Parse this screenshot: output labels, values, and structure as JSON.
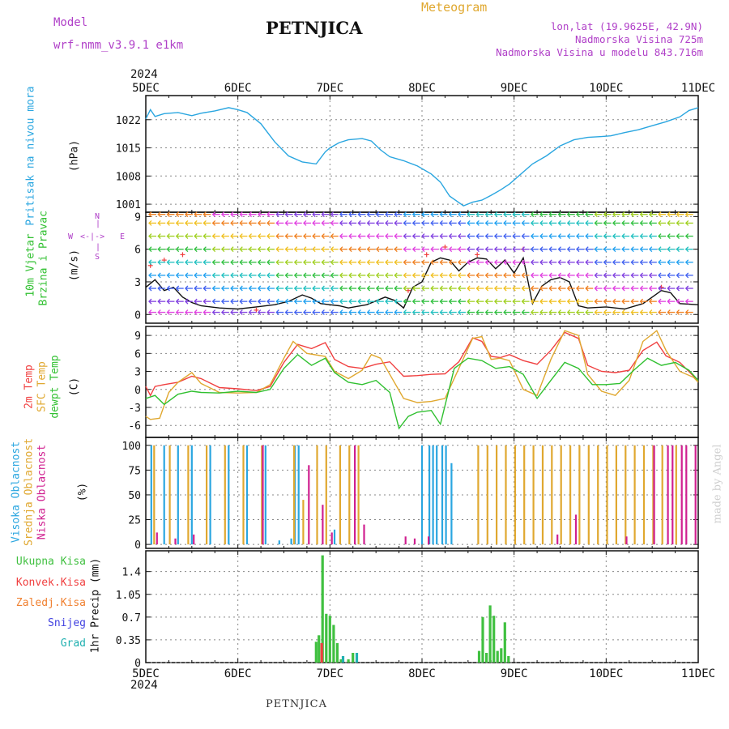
{
  "header": {
    "title": "PETNJICA",
    "subtitle": "Meteogram",
    "model_label": "Model",
    "model_name": "wrf-nmm_v3.9.1 e1km",
    "lonlat": "lon,lat (19.9625E, 42.9N)",
    "elevation": "Nadmorska Visina 725m",
    "elevation_model": "Nadmorska Visina u modelu 843.716m"
  },
  "footer": {
    "station": "PETNJICA",
    "credit": "made by Angel"
  },
  "time_axis": {
    "year": "2024",
    "labels": [
      "5DEC",
      "6DEC",
      "7DEC",
      "8DEC",
      "9DEC",
      "10DEC",
      "11DEC"
    ]
  },
  "colors": {
    "pressure": "#2aa6e0",
    "temp2m": "#f04040",
    "sfc": "#e0a830",
    "dewpt": "#30c030",
    "high_cloud": "#2aa6e0",
    "mid_cloud": "#e0a830",
    "low_cloud": "#d02090",
    "total_precip": "#40c040",
    "conv": "#f04040",
    "frozen": "#f08030",
    "snow": "#4040e0",
    "graupel": "#20b0b0",
    "wind_label": "#30c030",
    "purple": "#b040c8"
  },
  "panels": {
    "pressure": {
      "label": "Pritisak na nivou mora",
      "unit": "(hPa)"
    },
    "wind": {
      "label1": "10m Vjetar",
      "label2": "Brzina i Pravac",
      "unit": "(m/s)",
      "compass_n": "N",
      "compass_s": "S",
      "compass_w": "W",
      "compass_e": "E"
    },
    "temp": {
      "label1": "2m Temp",
      "label2": "SFC Temp",
      "label3": "dewpt Temp",
      "unit": "(C)"
    },
    "cloud": {
      "label1": "Visoka Oblacnost",
      "label2": "Srednja Oblacnost",
      "label3": "Niska Oblacnost",
      "unit": "(%)"
    },
    "precip": {
      "legend": [
        "Ukupna Kisa",
        "Konvek.Kisa",
        "Zaledj.Kisa",
        "Snijeg",
        "Grad"
      ],
      "ylabel": "1hr Precip (mm)"
    }
  },
  "chart_data": [
    {
      "type": "line",
      "name": "pressure",
      "ylabel": "Pritisak na nivou mora (hPa)",
      "yticks": [
        1001,
        1008,
        1015,
        1022
      ],
      "ylim": [
        999,
        1028
      ],
      "xlim": [
        0,
        6
      ],
      "grid": true,
      "series": [
        {
          "name": "Pritisak na nivou mora",
          "color": "#2aa6e0",
          "x": [
            0,
            0.05,
            0.1,
            0.2,
            0.35,
            0.5,
            0.6,
            0.75,
            0.9,
            1.0,
            1.1,
            1.25,
            1.4,
            1.55,
            1.7,
            1.85,
            1.95,
            2.0,
            2.1,
            2.2,
            2.35,
            2.45,
            2.55,
            2.65,
            2.8,
            2.95,
            3.1,
            3.2,
            3.3,
            3.45,
            3.55,
            3.65,
            3.75,
            3.85,
            3.95,
            4.05,
            4.2,
            4.35,
            4.5,
            4.65,
            4.8,
            4.95,
            5.05,
            5.2,
            5.35,
            5.5,
            5.65,
            5.8,
            5.9,
            6.0
          ],
          "values": [
            1022.2,
            1024.5,
            1022.8,
            1023.5,
            1023.8,
            1023.0,
            1023.6,
            1024.2,
            1025.0,
            1024.5,
            1023.8,
            1021.0,
            1016.5,
            1013.0,
            1011.5,
            1011.0,
            1014.0,
            1015.0,
            1016.3,
            1017.0,
            1017.3,
            1016.7,
            1014.5,
            1012.8,
            1011.8,
            1010.5,
            1008.5,
            1006.5,
            1003.0,
            1000.6,
            1001.5,
            1002.0,
            1003.2,
            1004.5,
            1006.0,
            1008.0,
            1011.0,
            1013.0,
            1015.5,
            1017.0,
            1017.6,
            1017.8,
            1018.0,
            1018.8,
            1019.5,
            1020.5,
            1021.5,
            1022.7,
            1024.3,
            1025.0
          ]
        }
      ]
    },
    {
      "type": "line",
      "name": "wind",
      "ylabel": "10m Vjetar Brzina i Pravac (m/s)",
      "yticks": [
        0,
        3,
        6,
        9
      ],
      "ylim": [
        -0.8,
        9.4
      ],
      "xlim": [
        0,
        6
      ],
      "grid": true,
      "series": [
        {
          "name": "Brzina",
          "color": "#111111",
          "x": [
            0,
            0.1,
            0.2,
            0.3,
            0.4,
            0.5,
            0.6,
            0.8,
            1.0,
            1.2,
            1.4,
            1.55,
            1.7,
            1.8,
            1.9,
            2.0,
            2.1,
            2.2,
            2.4,
            2.6,
            2.7,
            2.8,
            2.9,
            3.0,
            3.1,
            3.2,
            3.3,
            3.4,
            3.5,
            3.6,
            3.7,
            3.8,
            3.9,
            4.0,
            4.1,
            4.2,
            4.3,
            4.4,
            4.5,
            4.6,
            4.7,
            4.8,
            5.0,
            5.2,
            5.4,
            5.5,
            5.6,
            5.7,
            5.8,
            6.0
          ],
          "values": [
            2.5,
            3.2,
            2.2,
            2.5,
            1.6,
            1.1,
            0.8,
            0.6,
            0.5,
            0.7,
            0.9,
            1.2,
            1.8,
            1.5,
            1.0,
            0.9,
            0.8,
            0.6,
            0.9,
            1.6,
            1.3,
            0.6,
            2.5,
            3.0,
            4.8,
            5.2,
            5.0,
            4.0,
            4.8,
            5.2,
            5.1,
            4.2,
            5.0,
            3.8,
            5.2,
            1.0,
            2.6,
            3.2,
            3.4,
            3.0,
            0.8,
            0.6,
            0.7,
            0.5,
            1.0,
            1.6,
            2.2,
            2.0,
            1.0,
            0.9
          ]
        },
        {
          "name": "Udari",
          "color": "#f04040",
          "x": [
            0.05,
            0.2,
            0.4,
            1.2,
            2.85,
            3.05,
            3.25,
            3.6,
            4.1,
            5.6
          ],
          "values": [
            4.5,
            5.0,
            5.5,
            0.4,
            2.2,
            5.5,
            6.2,
            5.5,
            6.0,
            2.5
          ]
        }
      ]
    },
    {
      "type": "line",
      "name": "temperature",
      "ylabel": "2m Temp / SFC Temp / dewpt Temp (C)",
      "yticks": [
        -6,
        -3,
        0,
        3,
        6,
        9
      ],
      "ylim": [
        -8,
        10.5
      ],
      "xlim": [
        0,
        6
      ],
      "grid": true,
      "series": [
        {
          "name": "2m Temp",
          "color": "#f04040",
          "x": [
            0,
            0.05,
            0.1,
            0.2,
            0.35,
            0.5,
            0.6,
            0.8,
            1.0,
            1.2,
            1.35,
            1.5,
            1.65,
            1.8,
            1.95,
            2.05,
            2.2,
            2.35,
            2.5,
            2.65,
            2.8,
            2.95,
            3.1,
            3.25,
            3.4,
            3.55,
            3.65,
            3.75,
            3.85,
            3.95,
            4.1,
            4.25,
            4.4,
            4.55,
            4.7,
            4.8,
            4.95,
            5.1,
            5.25,
            5.4,
            5.55,
            5.65,
            5.8,
            5.95,
            6.0
          ],
          "values": [
            0.5,
            -1.0,
            0.5,
            0.8,
            1.2,
            2.2,
            1.8,
            0.3,
            0.1,
            -0.2,
            0.5,
            4.5,
            7.5,
            6.8,
            7.8,
            5.0,
            3.8,
            3.5,
            4.2,
            4.6,
            2.2,
            2.3,
            2.5,
            2.6,
            4.6,
            8.6,
            8.0,
            5.5,
            5.3,
            5.8,
            4.8,
            4.2,
            6.5,
            9.5,
            8.5,
            4.0,
            3.0,
            2.8,
            3.2,
            6.5,
            7.9,
            5.6,
            4.5,
            2.2,
            1.5
          ]
        },
        {
          "name": "SFC Temp",
          "color": "#e0a830",
          "x": [
            0,
            0.05,
            0.15,
            0.25,
            0.35,
            0.5,
            0.6,
            0.8,
            1.0,
            1.2,
            1.35,
            1.5,
            1.6,
            1.75,
            1.95,
            2.05,
            2.2,
            2.35,
            2.45,
            2.55,
            2.65,
            2.8,
            2.95,
            3.1,
            3.25,
            3.4,
            3.55,
            3.65,
            3.75,
            3.85,
            3.95,
            4.1,
            4.25,
            4.4,
            4.55,
            4.7,
            4.8,
            4.95,
            5.1,
            5.25,
            5.4,
            5.55,
            5.65,
            5.8,
            5.95,
            6.0
          ],
          "values": [
            -4.5,
            -5.0,
            -4.8,
            -0.5,
            1.2,
            2.8,
            1.0,
            -0.5,
            -0.6,
            -0.5,
            0.8,
            5.2,
            8.0,
            6.0,
            5.5,
            3.0,
            1.8,
            3.2,
            5.8,
            5.2,
            2.5,
            -1.5,
            -2.2,
            -2.0,
            -1.5,
            3.5,
            8.5,
            8.8,
            5.0,
            5.2,
            4.8,
            0.0,
            -1.0,
            5.0,
            9.8,
            9.0,
            2.5,
            -0.3,
            -1.0,
            1.5,
            8.0,
            9.8,
            6.5,
            3.0,
            2.0,
            1.2
          ]
        },
        {
          "name": "dewpt Temp",
          "color": "#30c030",
          "x": [
            0,
            0.1,
            0.2,
            0.35,
            0.5,
            0.6,
            0.8,
            1.0,
            1.2,
            1.35,
            1.5,
            1.65,
            1.8,
            1.95,
            2.05,
            2.2,
            2.35,
            2.5,
            2.65,
            2.75,
            2.85,
            2.95,
            3.1,
            3.2,
            3.35,
            3.5,
            3.65,
            3.8,
            3.95,
            4.1,
            4.25,
            4.4,
            4.55,
            4.7,
            4.85,
            5.0,
            5.15,
            5.3,
            5.45,
            5.6,
            5.75,
            5.9,
            6.0
          ],
          "values": [
            -1.5,
            -1.0,
            -2.5,
            -0.8,
            -0.3,
            -0.5,
            -0.6,
            -0.3,
            -0.5,
            0.0,
            3.5,
            5.8,
            4.0,
            5.2,
            2.8,
            1.2,
            0.8,
            1.5,
            -0.5,
            -6.5,
            -4.5,
            -3.8,
            -3.5,
            -5.8,
            3.5,
            5.2,
            4.8,
            3.5,
            3.8,
            2.5,
            -1.5,
            1.5,
            4.5,
            3.5,
            0.8,
            0.8,
            1.0,
            3.2,
            5.2,
            4.0,
            4.5,
            3.2,
            1.5
          ]
        }
      ]
    },
    {
      "type": "bar",
      "name": "cloud_cover",
      "ylabel": "Visoka / Srednja / Niska Oblacnost (%)",
      "yticks": [
        0,
        25,
        50,
        75,
        100
      ],
      "ylim": [
        -4,
        108
      ],
      "xlim": [
        0,
        6
      ],
      "grid": true,
      "series": [
        {
          "name": "Visoka Oblacnost",
          "color": "#2aa6e0",
          "x": [
            0.06,
            0.2,
            0.35,
            0.5,
            0.7,
            0.9,
            1.1,
            1.3,
            1.45,
            1.58,
            1.62,
            1.66,
            2.05,
            3.0,
            3.08,
            3.12,
            3.16,
            3.22,
            3.26,
            3.32
          ],
          "values": [
            100,
            100,
            100,
            100,
            100,
            100,
            100,
            100,
            4,
            6,
            100,
            100,
            15,
            100,
            100,
            100,
            100,
            100,
            100,
            82
          ]
        },
        {
          "name": "Srednja Oblacnost",
          "color": "#e0a830",
          "x": [
            0.08,
            0.25,
            0.45,
            0.65,
            0.85,
            1.05,
            1.25,
            1.6,
            1.7,
            1.85,
            1.95,
            2.1,
            2.2,
            2.3,
            3.6,
            3.7,
            3.8,
            3.9,
            4.0,
            4.1,
            4.2,
            4.3,
            4.4,
            4.5,
            4.6,
            4.7,
            4.8,
            4.9,
            5.0,
            5.1,
            5.2,
            5.3,
            5.4,
            5.5,
            5.6,
            5.75
          ],
          "values": [
            100,
            100,
            100,
            100,
            100,
            100,
            100,
            100,
            45,
            100,
            100,
            100,
            100,
            100,
            100,
            100,
            100,
            100,
            100,
            100,
            100,
            100,
            100,
            100,
            100,
            100,
            100,
            100,
            100,
            100,
            100,
            100,
            100,
            100,
            100,
            100
          ]
        },
        {
          "name": "Niska Oblacnost",
          "color": "#d02090",
          "x": [
            0.1,
            0.3,
            0.5,
            1.25,
            1.75,
            1.9,
            2.0,
            2.25,
            2.35,
            2.8,
            2.9,
            3.05,
            4.45,
            4.65,
            5.2,
            5.5,
            5.65,
            5.7,
            5.8,
            5.85,
            5.95
          ],
          "values": [
            12,
            6,
            10,
            100,
            80,
            40,
            12,
            100,
            20,
            8,
            6,
            8,
            10,
            30,
            8,
            100,
            100,
            100,
            100,
            100,
            100
          ]
        }
      ]
    },
    {
      "type": "bar",
      "name": "precipitation",
      "ylabel": "1hr Precip (mm)",
      "yticks": [
        0,
        0.35,
        0.7,
        1.05,
        1.4
      ],
      "ylim": [
        0,
        1.72
      ],
      "xlim": [
        0,
        6
      ],
      "grid": true,
      "series": [
        {
          "name": "Ukupna Kisa",
          "color": "#40c040",
          "x": [
            1.85,
            1.88,
            1.92,
            1.96,
            2.0,
            2.04,
            2.08,
            2.12,
            2.2,
            2.25,
            3.62,
            3.66,
            3.7,
            3.74,
            3.78,
            3.82,
            3.86,
            3.9,
            3.94
          ],
          "values": [
            0.32,
            0.42,
            1.65,
            0.75,
            0.72,
            0.58,
            0.3,
            0.05,
            0.05,
            0.15,
            0.18,
            0.7,
            0.15,
            0.88,
            0.72,
            0.18,
            0.22,
            0.62,
            0.1
          ]
        },
        {
          "name": "Konvek.Kisa",
          "color": "#f04040",
          "x": [
            1.9
          ],
          "values": [
            0.3
          ]
        },
        {
          "name": "Zaledj.Kisa",
          "color": "#f08030",
          "x": [],
          "values": []
        },
        {
          "name": "Snijeg",
          "color": "#4040e0",
          "x": [],
          "values": []
        },
        {
          "name": "Grad",
          "color": "#20b0b0",
          "x": [
            2.1,
            2.25
          ],
          "values": [
            0.1,
            0.15
          ]
        }
      ]
    }
  ]
}
